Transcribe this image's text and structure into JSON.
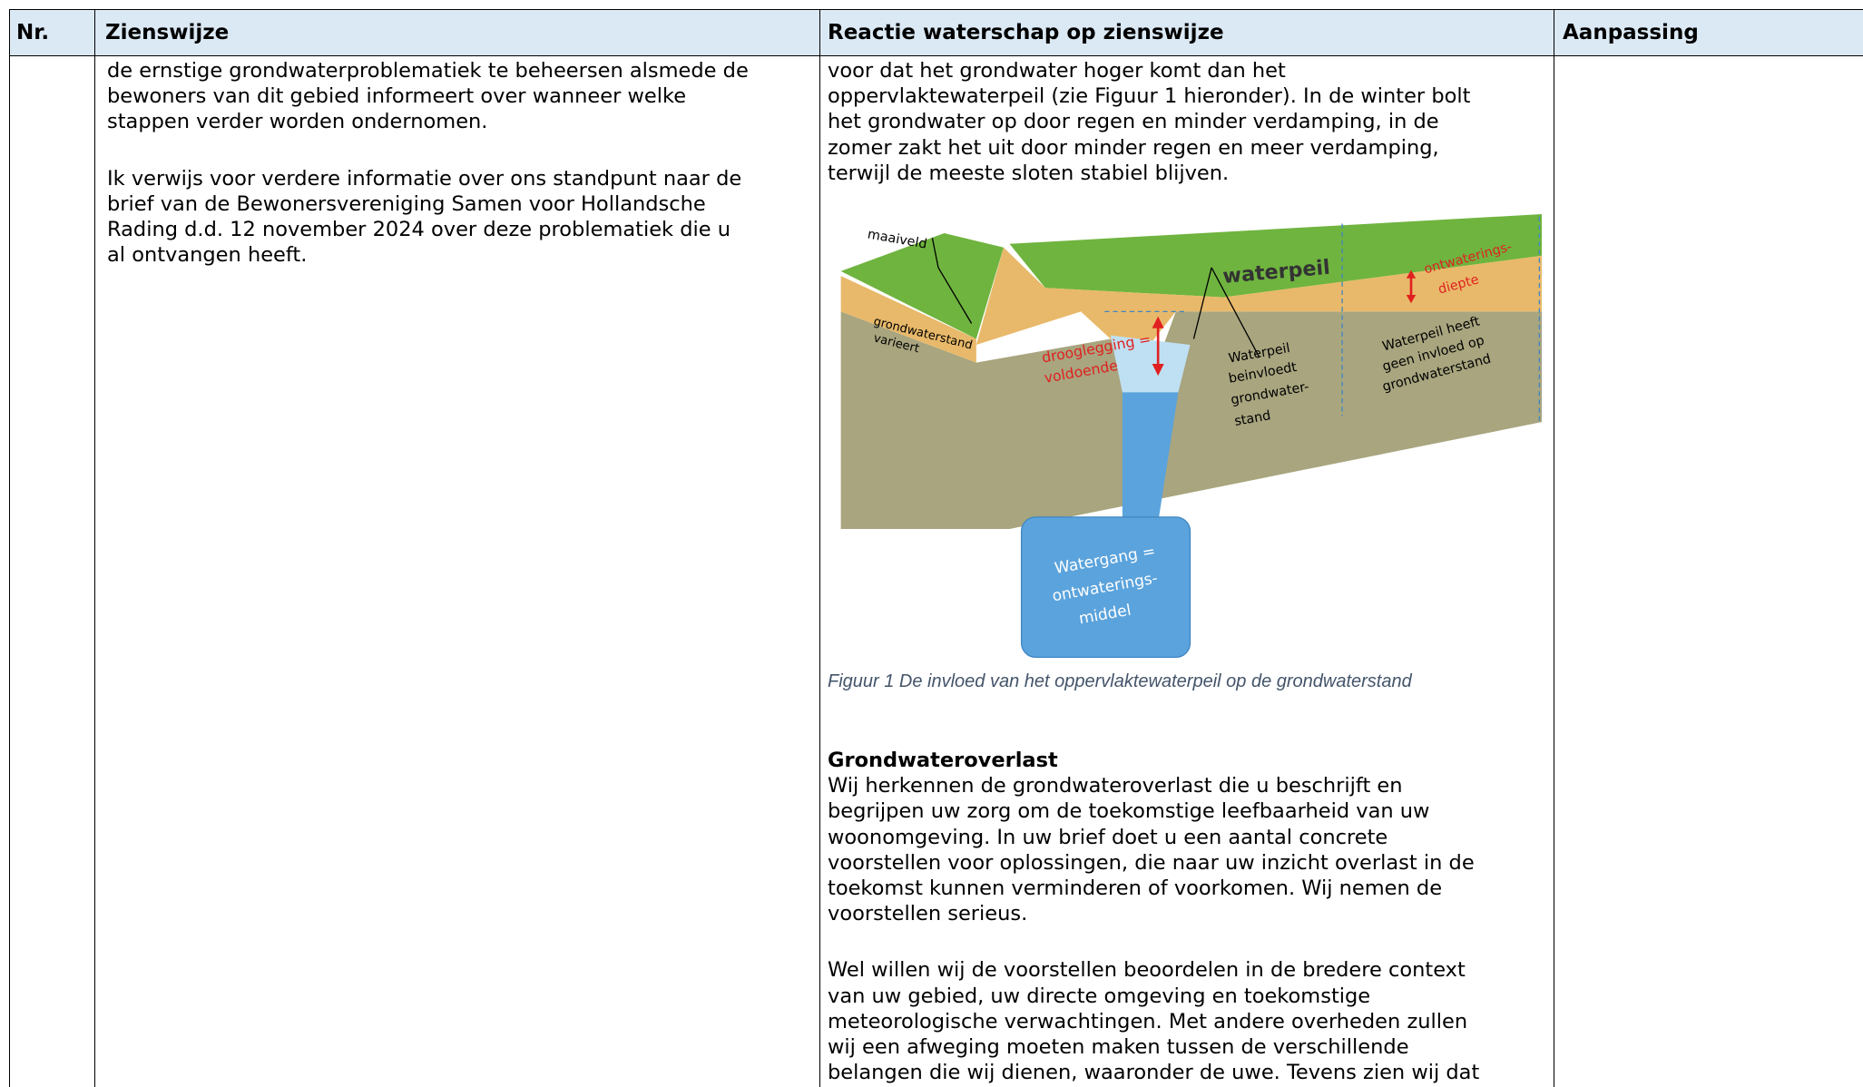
{
  "header": {
    "columns": [
      "Nr.",
      "Zienswijze",
      "Reactie waterschap op zienswijze",
      "Aanpassing"
    ]
  },
  "row": {
    "zienswijze": [
      [
        "de ernstige grondwaterproblematiek te beheersen alsmede de",
        "bewoners van dit gebied informeert over wanneer welke",
        "stappen verder worden ondernomen."
      ],
      [
        "Ik verwijs voor verdere informatie over ons standpunt naar de",
        "brief van de Bewonersvereniging Samen voor Hollandsche",
        "Rading d.d. 12 november 2024 over deze problematiek die u",
        "al ontvangen heeft."
      ]
    ],
    "reactie": {
      "intro": [
        "voor dat het grondwater hoger komt dan het",
        "oppervlaktewaterpeil (zie Figuur 1 hieronder). In de winter bolt",
        "het grondwater op door regen en minder verdamping, in de",
        "zomer zakt het uit door minder regen en meer verdamping,",
        "terwijl de meeste sloten stabiel blijven."
      ],
      "figure": {
        "labels": {
          "maaiveld": "maaiveld",
          "grondwaterstand": [
            "grondwaterstand",
            "varieert"
          ],
          "drooglegging": [
            "drooglegging =",
            "voldoende"
          ],
          "waterpeil": "waterpeil",
          "beinvloedt": [
            "Waterpeil",
            "beinvloedt",
            "grondwater-",
            "stand"
          ],
          "ontwateringsdiepte": [
            "ontwaterings-",
            "diepte"
          ],
          "geen_invloed": [
            "Waterpeil heeft",
            "geen invloed op",
            "grondwaterstand"
          ],
          "watergang": [
            "Watergang =",
            "ontwaterings-",
            "middel"
          ]
        },
        "caption": "Figuur 1 De invloed van het oppervlaktewaterpeil op de grondwaterstand"
      },
      "heading": "Grondwateroverlast",
      "paragraphs": [
        [
          "Wij herkennen de grondwateroverlast die u beschrijft en",
          "begrijpen uw zorg om de toekomstige leefbaarheid van uw",
          "woonomgeving. In uw brief doet u een aantal concrete",
          "voorstellen voor oplossingen, die naar uw inzicht overlast in de",
          "toekomst kunnen verminderen of voorkomen. Wij nemen de",
          "voorstellen serieus."
        ],
        [
          "Wel willen wij de voorstellen beoordelen in de bredere context",
          "van uw gebied, uw directe omgeving en toekomstige",
          "meteorologische verwachtingen. Met andere overheden zullen",
          "wij een afweging moeten maken tussen de verschillende",
          "belangen die wij dienen, waaronder de uwe. Tevens zien wij dat"
        ]
      ]
    }
  }
}
